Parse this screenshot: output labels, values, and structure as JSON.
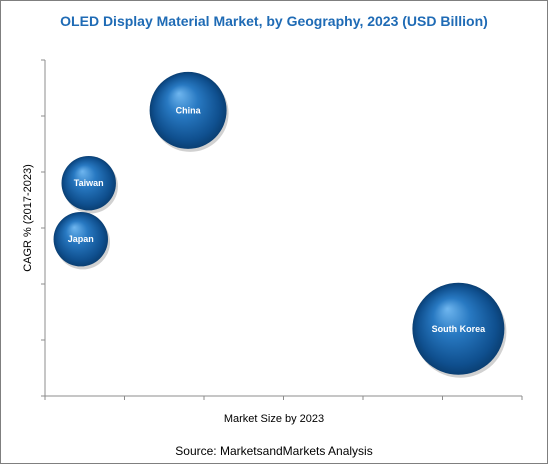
{
  "chart_data": {
    "type": "bubble",
    "title": "OLED Display Material Market, by Geography, 2023 (USD Billion)",
    "xlabel": "Market Size by 2023",
    "ylabel": "CAGR % (2017-2023)",
    "source": "Source: MarketsandMarkets Analysis",
    "xlim": [
      0,
      6
    ],
    "ylim": [
      0,
      6
    ],
    "x_ticks": [
      0,
      1,
      2,
      3,
      4,
      5,
      6
    ],
    "y_ticks": [
      0,
      1,
      2,
      3,
      4,
      5,
      6
    ],
    "tick_labels_shown": false,
    "grid": false,
    "legend": "none",
    "bubble_color": "#1565a8",
    "points": [
      {
        "label": "China",
        "x": 1.8,
        "y": 5.1,
        "size": 0.7
      },
      {
        "label": "Taiwan",
        "x": 0.55,
        "y": 3.8,
        "size": 0.35
      },
      {
        "label": "Japan",
        "x": 0.45,
        "y": 2.8,
        "size": 0.35
      },
      {
        "label": "South Korea",
        "x": 5.2,
        "y": 1.2,
        "size": 1.0
      }
    ]
  }
}
